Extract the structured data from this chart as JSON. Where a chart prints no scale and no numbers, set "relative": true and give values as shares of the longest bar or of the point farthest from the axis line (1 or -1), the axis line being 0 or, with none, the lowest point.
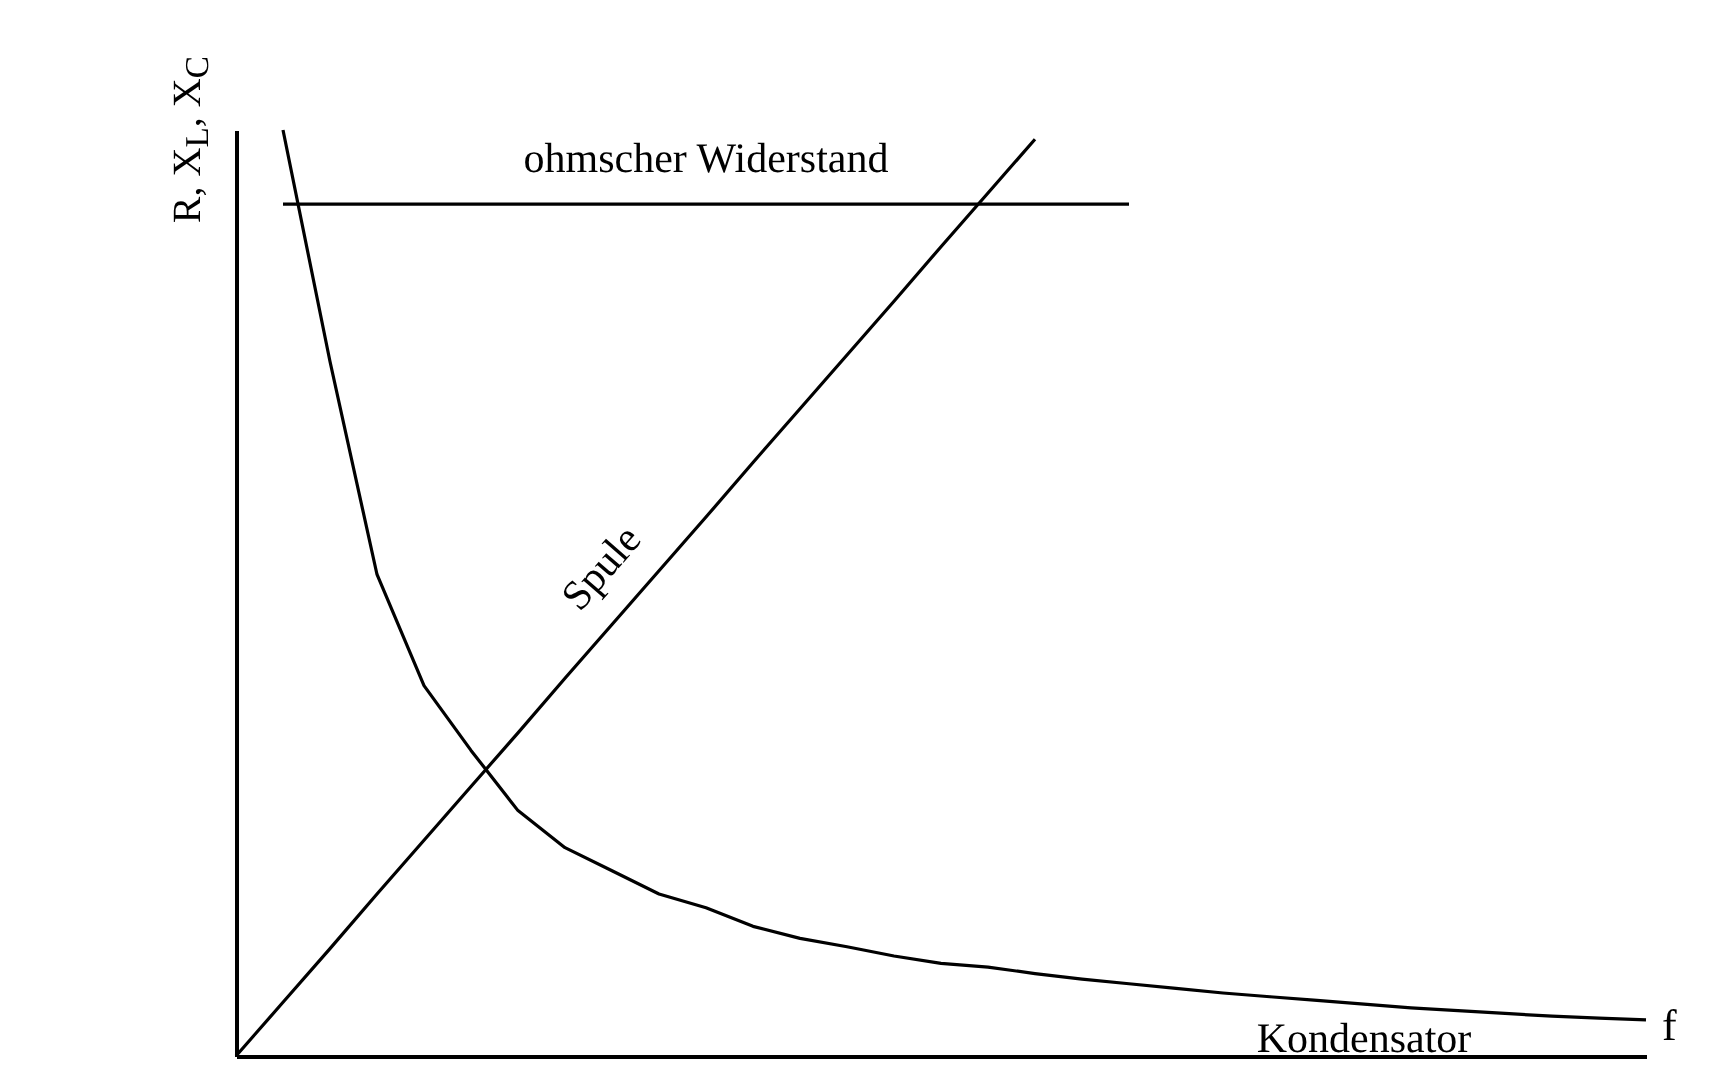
{
  "chart_data": {
    "type": "line",
    "relative": true,
    "xlabel": "f",
    "ylabel": "R, X$_{L}$, X$_{C}$",
    "marker": "none",
    "line_style": "solid",
    "grid": false,
    "categories": [
      null,
      null,
      null,
      null,
      null,
      null,
      null,
      null,
      null,
      null,
      null,
      null,
      null,
      null,
      null,
      null,
      null,
      null,
      null,
      null,
      null,
      null,
      null,
      null,
      null,
      null,
      null,
      null,
      null,
      null,
      null
    ],
    "series": [
      {
        "name": "ohmscher Widerstand",
        "color": "#000000",
        "values": [
          null,
          0.92,
          0.92,
          0.92,
          0.92,
          0.92,
          0.92,
          0.92,
          0.92,
          0.92,
          0.92,
          0.92,
          0.92,
          0.92,
          0.92,
          0.92,
          0.92,
          0.92,
          0.92,
          0.92,
          null,
          null,
          null,
          null,
          null,
          null,
          null,
          null,
          null,
          null,
          null
        ]
      },
      {
        "name": "Spule",
        "color": "#000000",
        "values": [
          0,
          0.058,
          0.116,
          0.175,
          0.233,
          0.291,
          0.349,
          0.408,
          0.466,
          0.524,
          0.582,
          0.641,
          0.699,
          0.757,
          0.815,
          0.874,
          0.932,
          0.99,
          null,
          null,
          null,
          null,
          null,
          null,
          null,
          null,
          null,
          null,
          null,
          null,
          null
        ]
      },
      {
        "name": "Kondensator",
        "color": "#000000",
        "values": [
          null,
          1,
          0.75,
          0.52,
          0.4,
          0.33,
          0.265,
          0.225,
          0.2,
          0.175,
          0.16,
          0.14,
          0.127,
          0.118,
          0.108,
          0.1,
          0.096,
          0.089,
          0.083,
          0.078,
          0.073,
          0.068,
          0.064,
          0.06,
          0.056,
          0.052,
          0.049,
          0.046,
          0.043,
          0.041,
          0.039
        ]
      }
    ]
  }
}
